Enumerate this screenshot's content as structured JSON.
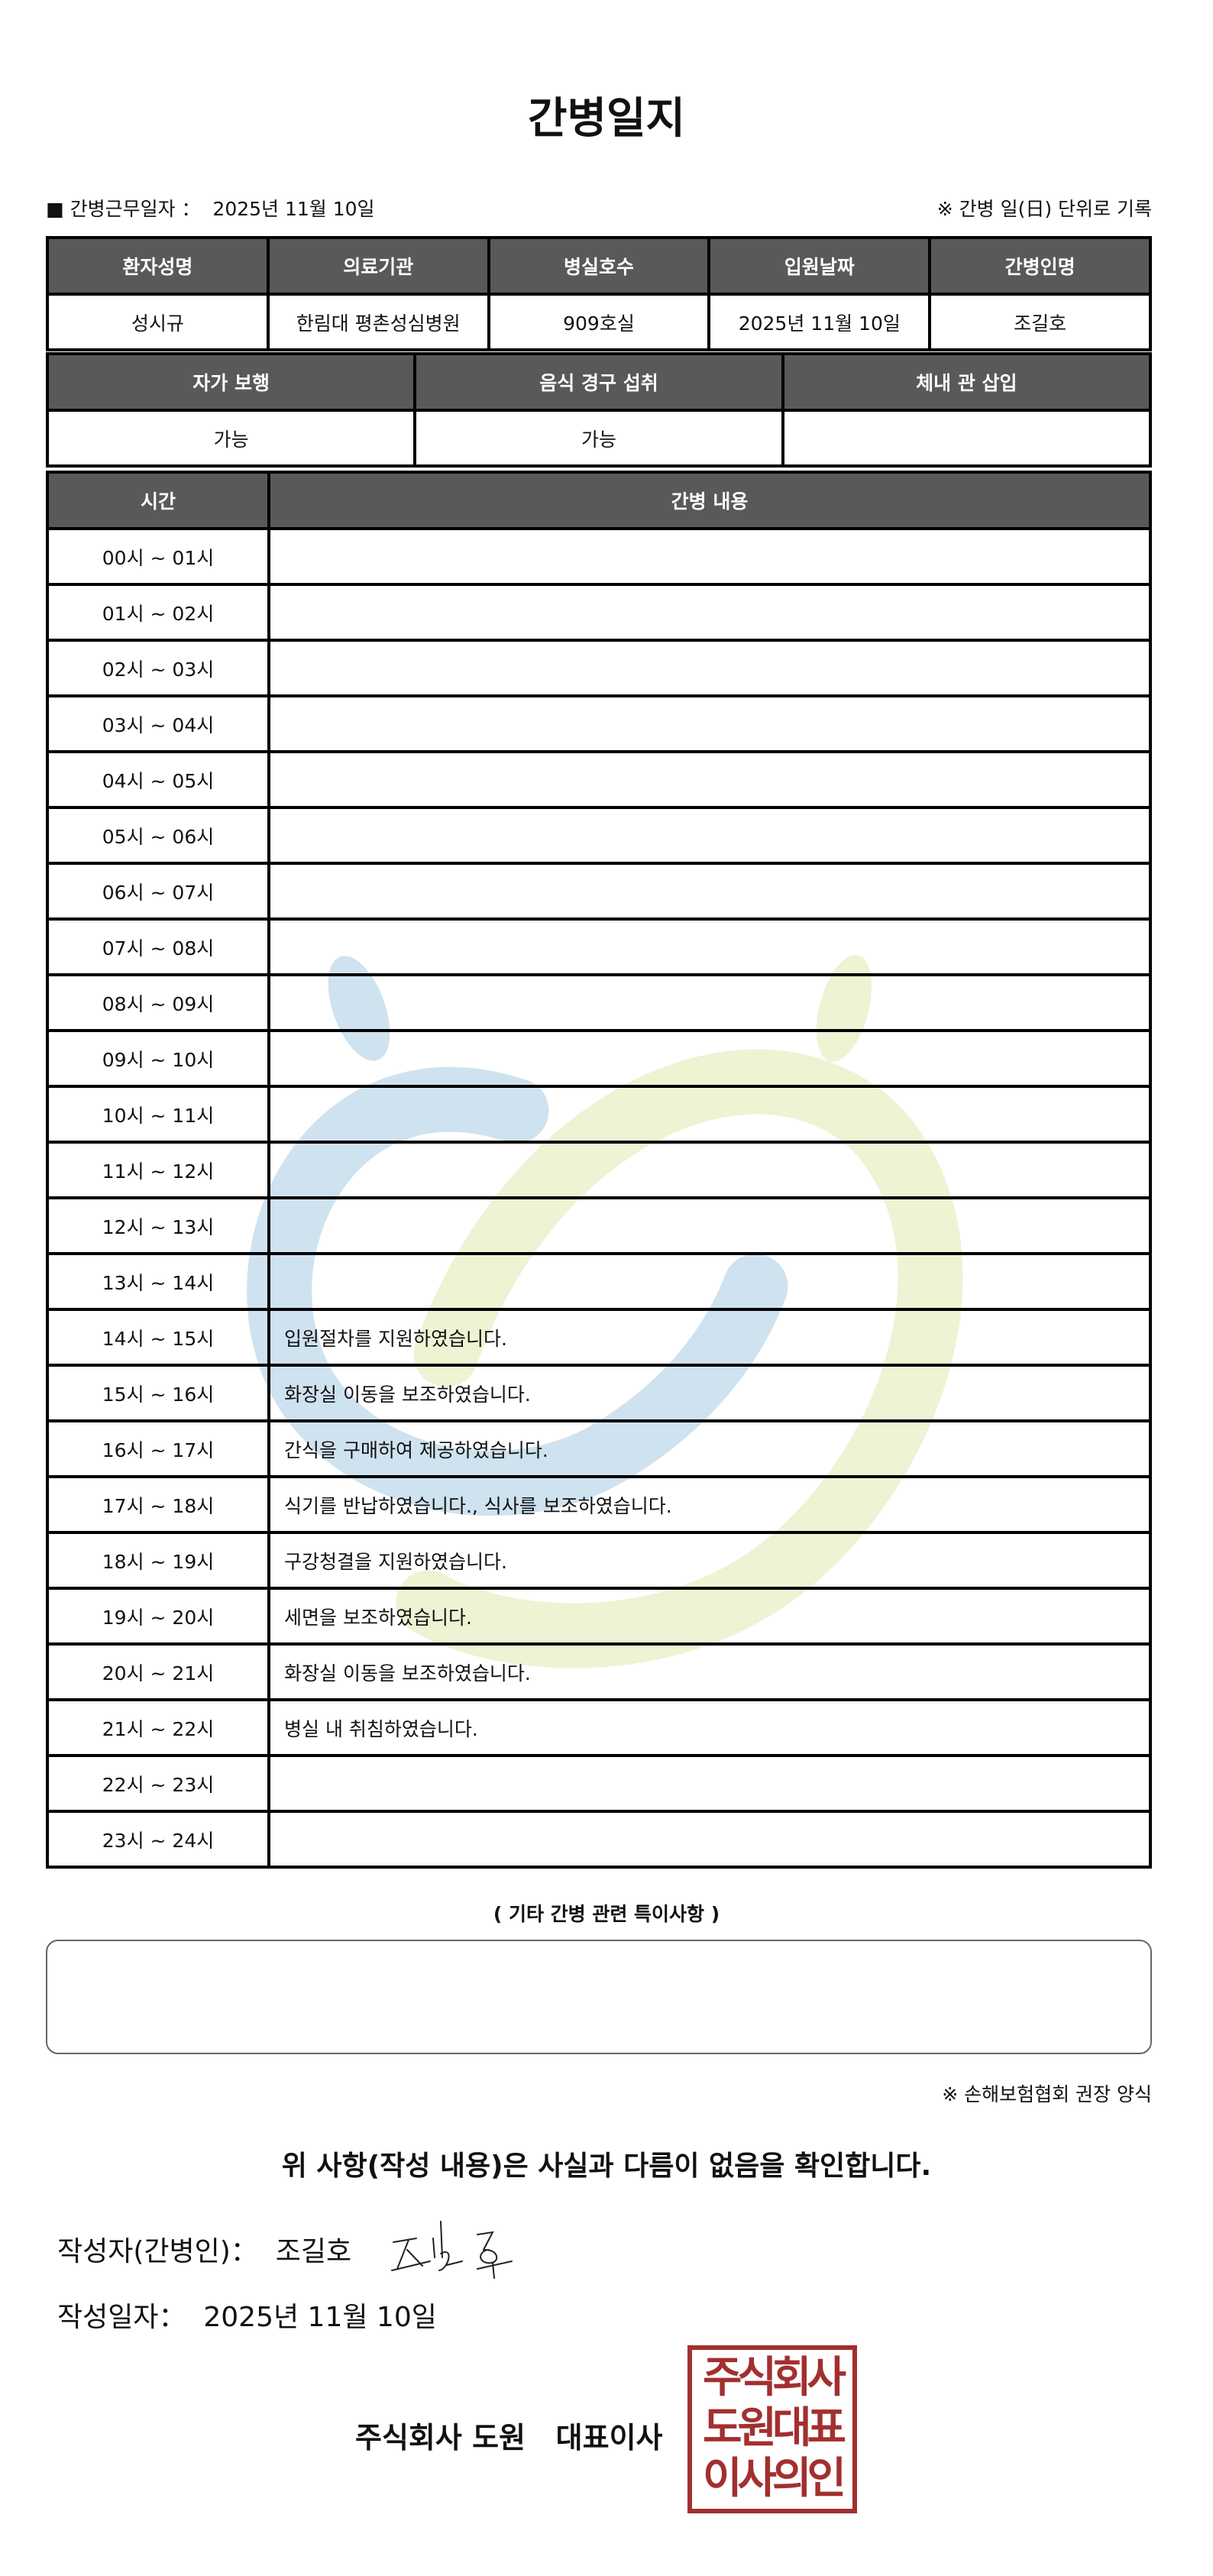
{
  "title": "간병일지",
  "work_date_label": "■ 간병근무일자 ：",
  "work_date": "2025년 11월 10일",
  "record_note": "※ 간병 일(日) 단위로 기록",
  "patient_table": {
    "headers": [
      "환자성명",
      "의료기관",
      "병실호수",
      "입원날짜",
      "간병인명"
    ],
    "values": [
      "성시규",
      "한림대 평촌성심병원",
      "909호실",
      "2025년 11월 10일",
      "조길호"
    ]
  },
  "status_table": {
    "headers": [
      "자가 보행",
      "음식 경구 섭취",
      "체내 관 삽입"
    ],
    "values": [
      "가능",
      "가능",
      ""
    ]
  },
  "log_table": {
    "headers": [
      "시간",
      "간병 내용"
    ],
    "rows": [
      {
        "time": "00시 ~ 01시",
        "content": ""
      },
      {
        "time": "01시 ~ 02시",
        "content": ""
      },
      {
        "time": "02시 ~ 03시",
        "content": ""
      },
      {
        "time": "03시 ~ 04시",
        "content": ""
      },
      {
        "time": "04시 ~ 05시",
        "content": ""
      },
      {
        "time": "05시 ~ 06시",
        "content": ""
      },
      {
        "time": "06시 ~ 07시",
        "content": ""
      },
      {
        "time": "07시 ~ 08시",
        "content": ""
      },
      {
        "time": "08시 ~ 09시",
        "content": ""
      },
      {
        "time": "09시 ~ 10시",
        "content": ""
      },
      {
        "time": "10시 ~ 11시",
        "content": ""
      },
      {
        "time": "11시 ~ 12시",
        "content": ""
      },
      {
        "time": "12시 ~ 13시",
        "content": ""
      },
      {
        "time": "13시 ~ 14시",
        "content": ""
      },
      {
        "time": "14시 ~ 15시",
        "content": "입원절차를 지원하였습니다."
      },
      {
        "time": "15시 ~ 16시",
        "content": "화장실 이동을 보조하였습니다."
      },
      {
        "time": "16시 ~ 17시",
        "content": "간식을 구매하여 제공하였습니다."
      },
      {
        "time": "17시 ~ 18시",
        "content": "식기를 반납하였습니다., 식사를 보조하였습니다."
      },
      {
        "time": "18시 ~ 19시",
        "content": "구강청결을 지원하였습니다."
      },
      {
        "time": "19시 ~ 20시",
        "content": "세면을 보조하였습니다."
      },
      {
        "time": "20시 ~ 21시",
        "content": "화장실 이동을 보조하였습니다."
      },
      {
        "time": "21시 ~ 22시",
        "content": "병실 내 취침하였습니다."
      },
      {
        "time": "22시 ~ 23시",
        "content": ""
      },
      {
        "time": "23시 ~ 24시",
        "content": ""
      }
    ]
  },
  "memo_label": "( 기타 간병 관련 특이사항 )",
  "memo_value": "",
  "form_note": "※ 손해보험협회 권장 양식",
  "confirm_text": "위 사항(작성 내용)은 사실과 다름이 없음을 확인합니다.",
  "writer_label": "작성자(간병인)：",
  "writer_name": "조길호",
  "written_date_label": "작성일자：",
  "written_date": "2025년 11월 10일",
  "company": "주식회사 도원   대표이사",
  "stamp_lines": [
    "주식회사",
    "도원대표",
    "이사의인"
  ],
  "colors": {
    "header_bg": "#595959",
    "stamp": "#a32f2f",
    "watermark_blue": "#cfe2f0",
    "watermark_green": "#eef3d4"
  }
}
